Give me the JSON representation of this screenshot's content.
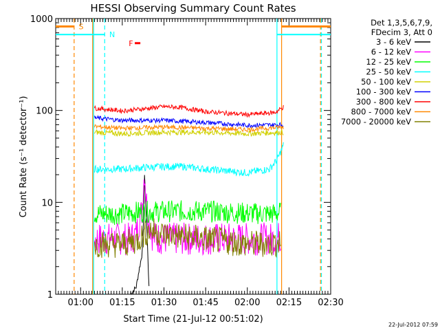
{
  "chart_data": {
    "type": "line",
    "title": "HESSI Observing Summary Count Rates",
    "xlabel": "Start Time (21-Jul-12 00:51:02)",
    "ylabel": "Count Rate (s⁻¹ detector⁻¹)",
    "y_scale": "log",
    "ylim": [
      1,
      1000
    ],
    "xlim": [
      "00:51:02",
      "02:30:00"
    ],
    "x_tick_labels": [
      "01:00",
      "01:15",
      "01:30",
      "01:45",
      "02:00",
      "02:15",
      "02:30"
    ],
    "y_tick_labels": [
      "1",
      "10",
      "100",
      "1000"
    ],
    "legend_header": [
      "Det 1,3,5,6,7,9,",
      "FDecim 3, Att 0"
    ],
    "legend_position": "right",
    "timestamp": "22-Jul-2012 07:59",
    "series": [
      {
        "name": "3 - 6 keV",
        "color": "#000000",
        "x": [
          "01:18",
          "01:20",
          "01:21",
          "01:22",
          "01:22:40",
          "01:23",
          "01:24",
          "01:24:40"
        ],
        "values": [
          1.0,
          1.2,
          1.8,
          2.6,
          6,
          20,
          4,
          1.0
        ]
      },
      {
        "name": "6 - 12 keV",
        "color": "#ff00ff",
        "x": [
          "01:05",
          "01:10",
          "01:15",
          "01:18",
          "01:20",
          "01:22",
          "01:23",
          "01:24",
          "01:26",
          "01:30",
          "01:45",
          "02:00",
          "02:05",
          "02:10",
          "02:12"
        ],
        "values": [
          4.0,
          4.0,
          4.0,
          4.0,
          4.5,
          8,
          22,
          8,
          4.2,
          4.0,
          4.0,
          4.0,
          4.0,
          4.0,
          4.2
        ]
      },
      {
        "name": "12 - 25 keV",
        "color": "#00ff00",
        "x": [
          "01:05",
          "01:15",
          "01:20",
          "01:30",
          "01:45",
          "02:00",
          "02:10",
          "02:12"
        ],
        "values": [
          7.5,
          7.5,
          7.8,
          8.0,
          8.0,
          7.6,
          7.5,
          7.8
        ]
      },
      {
        "name": "25 - 50 keV",
        "color": "#00ffff",
        "x": [
          "01:05",
          "01:15",
          "01:24",
          "01:30",
          "01:37",
          "01:45",
          "02:00",
          "02:08",
          "02:11",
          "02:13"
        ],
        "values": [
          23,
          23,
          24,
          24.5,
          24.5,
          23,
          21,
          23,
          30,
          42
        ]
      },
      {
        "name": "50 - 100 keV",
        "color": "#d0d000",
        "x": [
          "01:05",
          "01:15",
          "01:30",
          "01:45",
          "02:00",
          "02:13"
        ],
        "values": [
          58,
          56,
          58,
          58,
          56,
          58
        ]
      },
      {
        "name": "100 - 300 keV",
        "color": "#0000ff",
        "x": [
          "01:05",
          "01:15",
          "01:30",
          "01:45",
          "02:00",
          "02:13"
        ],
        "values": [
          83,
          78,
          78,
          74,
          69,
          70
        ]
      },
      {
        "name": "300 - 800 keV",
        "color": "#ff0000",
        "x": [
          "01:05",
          "01:15",
          "01:21",
          "01:30",
          "01:36",
          "01:45",
          "02:00",
          "02:10",
          "02:13"
        ],
        "values": [
          106,
          99,
          103,
          110,
          108,
          97,
          90,
          95,
          109
        ]
      },
      {
        "name": "800 - 7000 keV",
        "color": "#ff8800",
        "x": [
          "01:05",
          "01:15",
          "01:30",
          "01:45",
          "02:00",
          "02:13"
        ],
        "values": [
          67,
          64,
          66,
          64,
          62,
          66
        ]
      },
      {
        "name": "7000 - 20000 keV",
        "color": "#808000",
        "x": [
          "01:05",
          "01:15",
          "01:20",
          "01:25",
          "01:30",
          "01:45",
          "02:00",
          "02:12"
        ],
        "values": [
          3.5,
          3.5,
          3.8,
          5,
          4.5,
          4.0,
          3.5,
          3.6
        ]
      }
    ],
    "markers": [
      {
        "label": "S",
        "color": "#ff8800"
      },
      {
        "label": "N",
        "color": "#00ffff"
      },
      {
        "label": "F",
        "color": "#ff0000"
      }
    ]
  }
}
